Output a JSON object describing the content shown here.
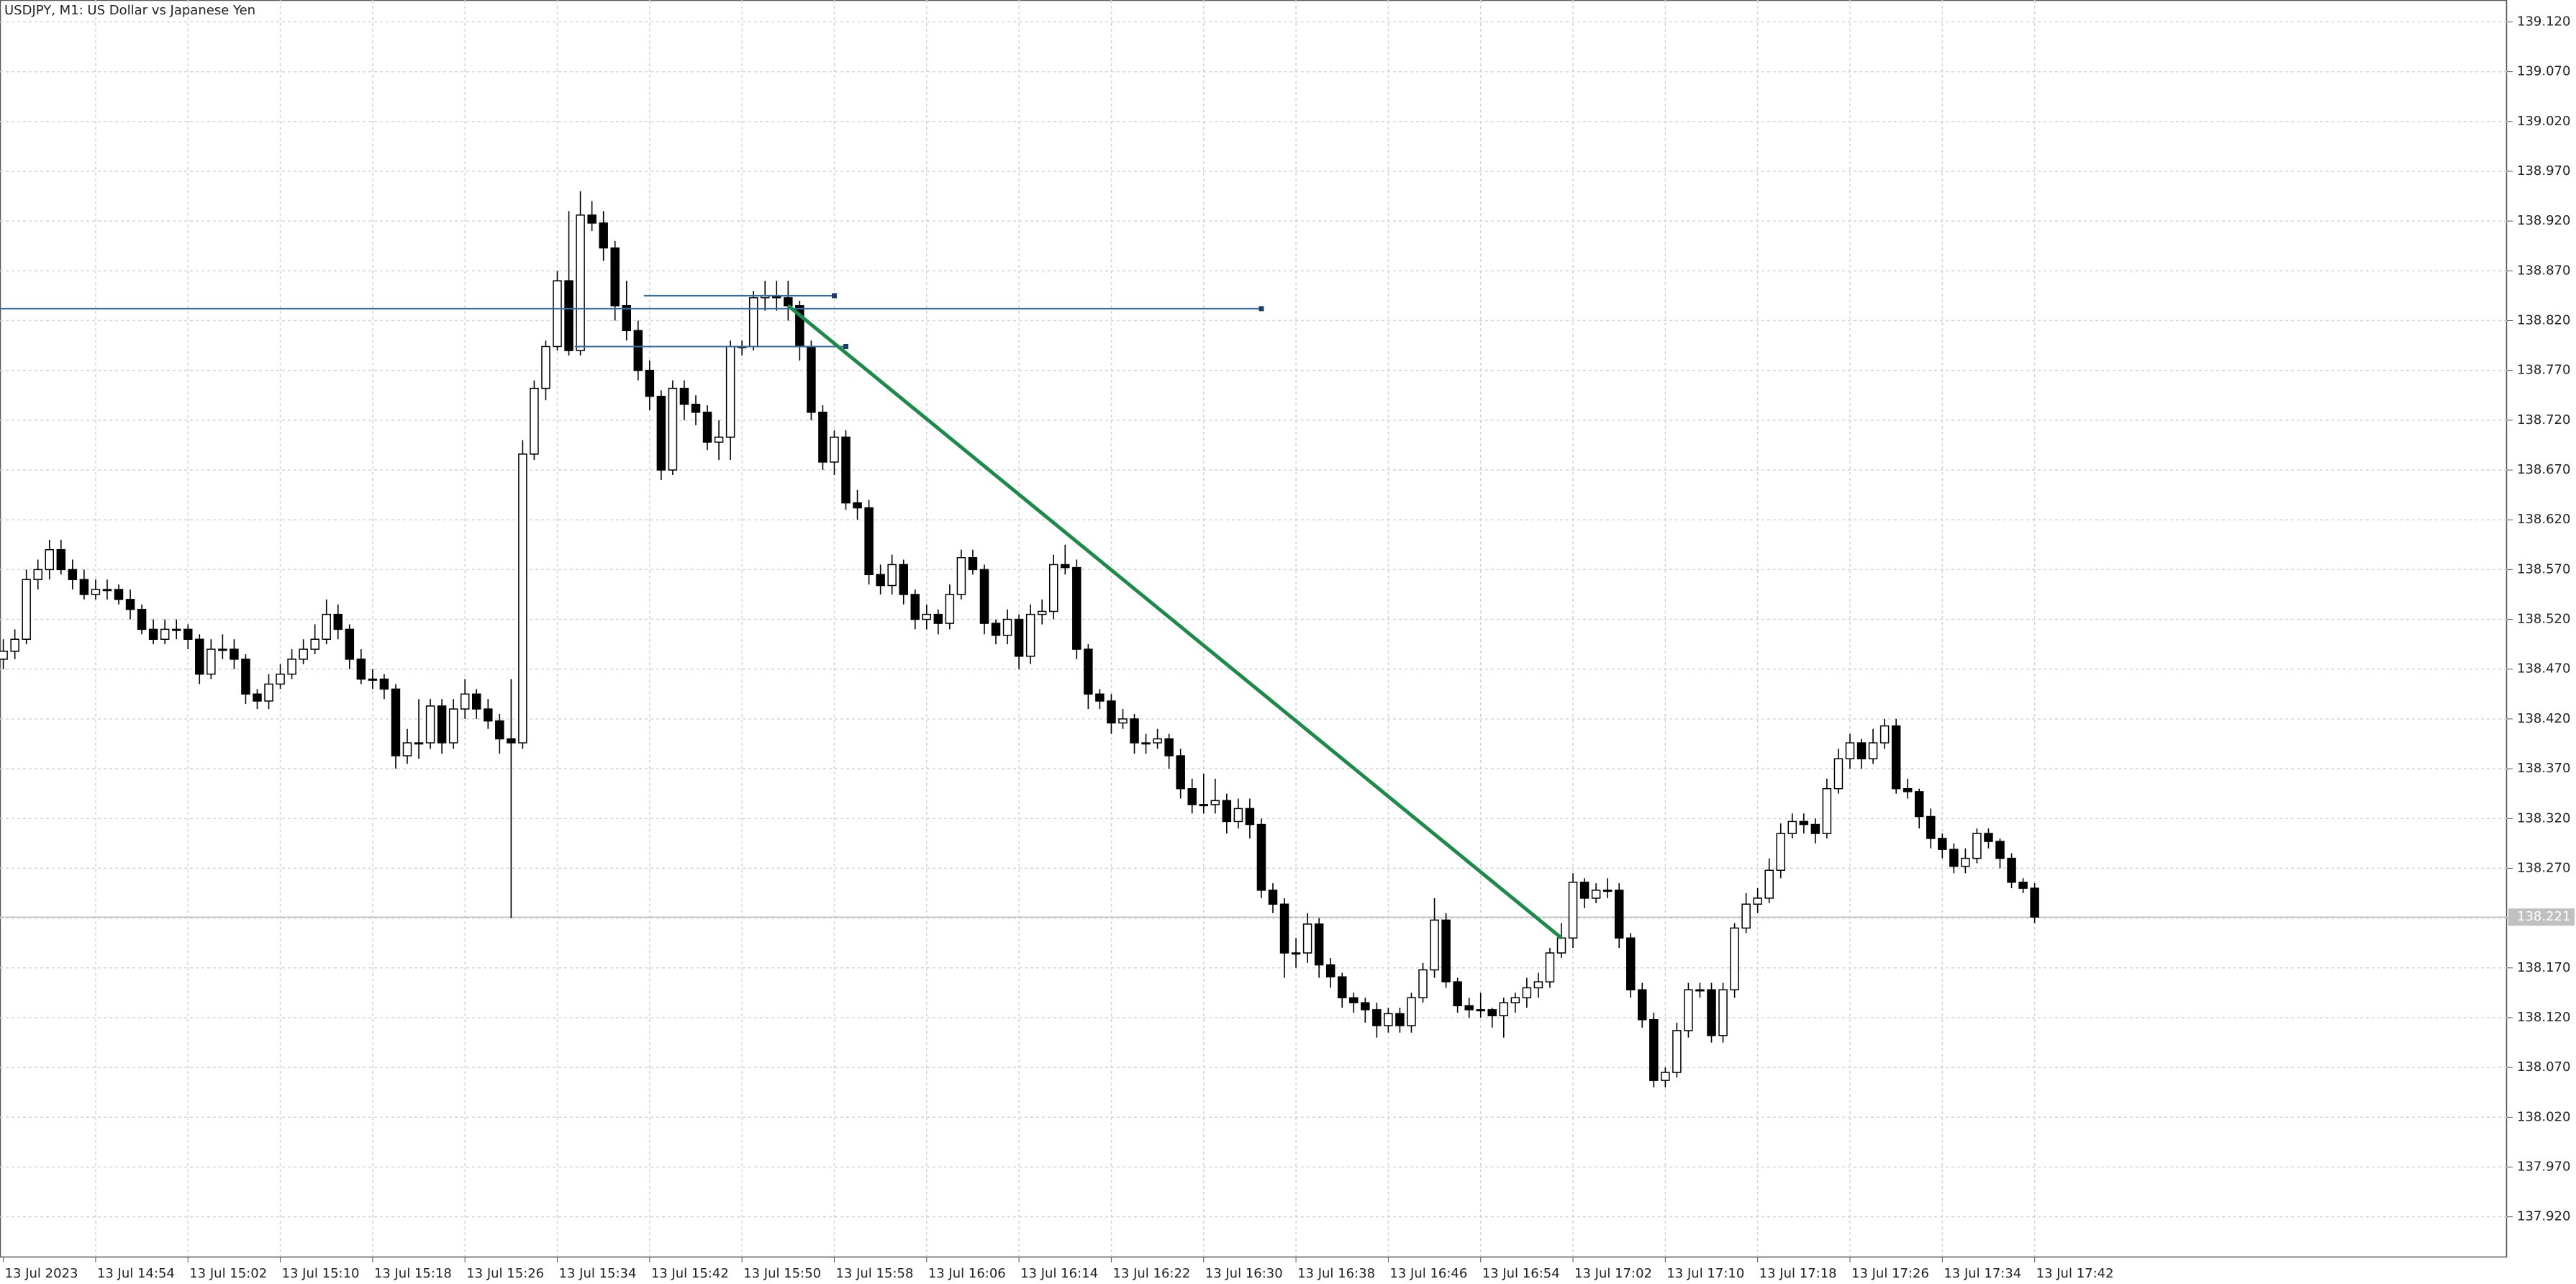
{
  "chart_data": {
    "type": "candlestick",
    "title": "USDJPY, M1:  US Dollar vs Japanese Yen",
    "ylim": [
      137.88,
      139.142
    ],
    "yticks": [
      {
        "value": 137.92,
        "label": "137.920"
      },
      {
        "value": 137.97,
        "label": "137.970"
      },
      {
        "value": 138.02,
        "label": "138.020"
      },
      {
        "value": 138.07,
        "label": "138.070"
      },
      {
        "value": 138.12,
        "label": "138.120"
      },
      {
        "value": 138.17,
        "label": "138.170"
      },
      {
        "value": 138.22,
        "label": "138.220"
      },
      {
        "value": 138.27,
        "label": "138.270"
      },
      {
        "value": 138.32,
        "label": "138.320"
      },
      {
        "value": 138.37,
        "label": "138.370"
      },
      {
        "value": 138.42,
        "label": "138.420"
      },
      {
        "value": 138.47,
        "label": "138.470"
      },
      {
        "value": 138.52,
        "label": "138.520"
      },
      {
        "value": 138.57,
        "label": "138.570"
      },
      {
        "value": 138.62,
        "label": "138.620"
      },
      {
        "value": 138.67,
        "label": "138.670"
      },
      {
        "value": 138.72,
        "label": "138.720"
      },
      {
        "value": 138.77,
        "label": "138.770"
      },
      {
        "value": 138.82,
        "label": "138.820"
      },
      {
        "value": 138.87,
        "label": "138.870"
      },
      {
        "value": 138.92,
        "label": "138.920"
      },
      {
        "value": 138.97,
        "label": "138.970"
      },
      {
        "value": 139.02,
        "label": "139.020"
      },
      {
        "value": 139.07,
        "label": "139.070"
      },
      {
        "value": 139.12,
        "label": "139.120"
      }
    ],
    "grid": true,
    "current_price": 138.221,
    "categories": [
      "13 Jul 2023",
      null,
      null,
      null,
      null,
      null,
      null,
      null,
      "13 Jul 14:54",
      null,
      null,
      null,
      null,
      null,
      null,
      null,
      "13 Jul 15:02",
      null,
      null,
      null,
      null,
      null,
      null,
      null,
      "13 Jul 15:10",
      null,
      null,
      null,
      null,
      null,
      null,
      null,
      "13 Jul 15:18",
      null,
      null,
      null,
      null,
      null,
      null,
      null,
      "13 Jul 15:26",
      null,
      null,
      null,
      null,
      null,
      null,
      null,
      "13 Jul 15:34",
      null,
      null,
      null,
      null,
      null,
      null,
      null,
      "13 Jul 15:42",
      null,
      null,
      null,
      null,
      null,
      null,
      null,
      "13 Jul 15:50",
      null,
      null,
      null,
      null,
      null,
      null,
      null,
      "13 Jul 15:58",
      null,
      null,
      null,
      null,
      null,
      null,
      null,
      "13 Jul 16:06",
      null,
      null,
      null,
      null,
      null,
      null,
      null,
      "13 Jul 16:14",
      null,
      null,
      null,
      null,
      null,
      null,
      null,
      "13 Jul 16:22",
      null,
      null,
      null,
      null,
      null,
      null,
      null,
      "13 Jul 16:30",
      null,
      null,
      null,
      null,
      null,
      null,
      null,
      "13 Jul 16:38",
      null,
      null,
      null,
      null,
      null,
      null,
      null,
      "13 Jul 16:46",
      null,
      null,
      null,
      null,
      null,
      null,
      null,
      "13 Jul 16:54",
      null,
      null,
      null,
      null,
      null,
      null,
      null,
      "13 Jul 17:02",
      null,
      null,
      null,
      null,
      null,
      null,
      null,
      "13 Jul 17:10",
      null,
      null,
      null,
      null,
      null,
      null,
      null,
      "13 Jul 17:18",
      null,
      null,
      null,
      null,
      null,
      null,
      null,
      "13 Jul 17:26",
      null,
      null,
      null,
      null,
      null,
      null,
      null,
      "13 Jul 17:34",
      null,
      null,
      null,
      null,
      null,
      null,
      null,
      "13 Jul 17:42"
    ],
    "open": [
      138.48,
      138.488,
      138.5,
      138.56,
      138.57,
      138.59,
      138.57,
      138.56,
      138.545,
      138.55,
      138.55,
      138.54,
      138.53,
      138.51,
      138.5,
      138.51,
      138.51,
      138.5,
      138.465,
      138.49,
      138.49,
      138.48,
      138.445,
      138.438,
      138.455,
      138.465,
      138.48,
      138.49,
      138.5,
      138.525,
      138.51,
      138.48,
      138.46,
      138.46,
      138.45,
      138.383,
      138.396,
      138.396,
      138.433,
      138.396,
      138.43,
      138.445,
      138.43,
      138.418,
      138.4,
      138.396,
      138.686,
      138.752,
      138.794,
      138.86,
      138.79,
      138.926,
      138.918,
      138.893,
      138.835,
      138.81,
      138.77,
      138.744,
      138.67,
      138.752,
      138.736,
      138.728,
      138.698,
      138.703,
      138.794,
      138.794,
      138.843,
      138.845,
      138.843,
      138.835,
      138.794,
      138.728,
      138.678,
      138.703,
      138.637,
      138.632,
      138.565,
      138.554,
      138.575,
      138.545,
      138.52,
      138.525,
      138.516,
      138.545,
      138.582,
      138.57,
      138.516,
      138.504,
      138.52,
      138.483,
      138.525,
      138.528,
      138.575,
      138.572,
      138.49,
      138.445,
      138.438,
      138.416,
      138.42,
      138.396,
      138.396,
      138.4,
      138.383,
      138.35,
      138.334,
      138.334,
      138.338,
      138.317,
      138.33,
      138.314,
      138.248,
      138.234,
      138.185,
      138.185,
      138.214,
      138.173,
      138.161,
      138.14,
      138.135,
      138.128,
      138.112,
      138.124,
      138.112,
      138.14,
      138.168,
      138.218,
      138.156,
      138.132,
      138.128,
      138.128,
      138.122,
      138.135,
      138.14,
      138.15,
      138.156,
      138.185,
      138.2,
      138.256,
      138.24,
      138.248,
      138.248,
      138.2,
      138.148,
      138.118,
      138.057,
      138.065,
      138.107,
      138.148,
      138.148,
      138.102,
      138.148,
      138.21,
      138.234,
      138.24,
      138.268,
      138.305,
      138.317,
      138.314,
      138.305,
      138.35,
      138.38,
      138.396,
      138.38,
      138.396,
      138.413,
      138.35,
      138.347,
      138.322,
      138.3,
      138.289,
      138.272,
      138.28,
      138.305,
      138.297,
      138.28,
      138.256,
      138.25
    ],
    "high": [
      138.5,
      138.51,
      138.57,
      138.58,
      138.6,
      138.6,
      138.58,
      138.57,
      138.56,
      138.56,
      138.555,
      138.55,
      138.535,
      138.52,
      138.52,
      138.52,
      138.515,
      138.505,
      138.5,
      138.505,
      138.5,
      138.485,
      138.45,
      138.465,
      138.475,
      138.49,
      138.5,
      138.515,
      138.54,
      138.535,
      138.515,
      138.49,
      138.47,
      138.465,
      138.455,
      138.41,
      138.44,
      138.44,
      138.44,
      138.44,
      138.46,
      138.45,
      138.44,
      138.425,
      138.46,
      138.7,
      138.76,
      138.8,
      138.87,
      138.93,
      138.95,
      138.94,
      138.93,
      138.9,
      138.86,
      138.82,
      138.78,
      138.75,
      138.76,
      138.76,
      138.745,
      138.735,
      138.72,
      138.8,
      138.8,
      138.85,
      138.86,
      138.86,
      138.86,
      138.84,
      138.8,
      138.735,
      138.71,
      138.71,
      138.65,
      138.64,
      138.575,
      138.585,
      138.58,
      138.55,
      138.535,
      138.53,
      138.555,
      138.59,
      138.59,
      138.575,
      138.52,
      138.53,
      138.525,
      138.535,
      138.54,
      138.585,
      138.595,
      138.58,
      138.495,
      138.45,
      138.445,
      138.43,
      138.425,
      138.405,
      138.41,
      138.405,
      138.39,
      138.36,
      138.365,
      138.36,
      138.345,
      138.34,
      138.34,
      138.32,
      138.255,
      138.24,
      138.2,
      138.225,
      138.22,
      138.18,
      138.165,
      138.145,
      138.14,
      138.135,
      138.13,
      138.13,
      138.145,
      138.175,
      138.24,
      138.225,
      138.16,
      138.14,
      138.145,
      138.13,
      138.14,
      138.145,
      138.16,
      138.165,
      138.19,
      138.215,
      138.265,
      138.26,
      138.255,
      138.26,
      138.255,
      138.205,
      138.155,
      138.125,
      138.07,
      138.115,
      138.155,
      138.155,
      138.155,
      138.155,
      138.215,
      138.245,
      138.25,
      138.28,
      138.315,
      138.325,
      138.325,
      138.32,
      138.36,
      138.39,
      138.405,
      138.4,
      138.41,
      138.42,
      138.42,
      138.36,
      138.35,
      138.33,
      138.305,
      138.295,
      138.29,
      138.31,
      138.31,
      138.3,
      138.285,
      138.26,
      138.255
    ],
    "low": [
      138.47,
      138.48,
      138.495,
      138.55,
      138.56,
      138.565,
      138.55,
      138.54,
      138.54,
      138.54,
      138.535,
      138.52,
      138.505,
      138.495,
      138.495,
      138.5,
      138.49,
      138.455,
      138.46,
      138.48,
      138.47,
      138.435,
      138.43,
      138.43,
      138.45,
      138.46,
      138.475,
      138.485,
      138.495,
      138.5,
      138.47,
      138.455,
      138.45,
      138.44,
      138.37,
      138.375,
      138.38,
      138.39,
      138.385,
      138.39,
      138.42,
      138.42,
      138.41,
      138.385,
      138.22,
      138.39,
      138.68,
      138.74,
      138.79,
      138.785,
      138.785,
      138.91,
      138.88,
      138.82,
      138.8,
      138.76,
      138.73,
      138.66,
      138.665,
      138.72,
      138.715,
      138.69,
      138.68,
      138.68,
      138.785,
      138.79,
      138.83,
      138.83,
      138.82,
      138.78,
      138.72,
      138.67,
      138.665,
      138.63,
      138.62,
      138.555,
      138.545,
      138.545,
      138.535,
      138.51,
      138.51,
      138.505,
      138.51,
      138.54,
      138.565,
      138.505,
      138.495,
      138.495,
      138.47,
      138.475,
      138.515,
      138.52,
      138.565,
      138.48,
      138.43,
      138.43,
      138.405,
      138.41,
      138.385,
      138.385,
      138.39,
      138.37,
      138.34,
      138.325,
      138.325,
      138.325,
      138.305,
      138.31,
      138.3,
      138.24,
      138.225,
      138.16,
      138.17,
      138.175,
      138.16,
      138.15,
      138.13,
      138.125,
      138.115,
      138.1,
      138.105,
      138.105,
      138.105,
      138.135,
      138.16,
      138.15,
      138.125,
      138.12,
      138.12,
      138.11,
      138.1,
      138.125,
      138.13,
      138.14,
      138.15,
      138.18,
      138.19,
      138.23,
      138.235,
      138.24,
      138.19,
      138.14,
      138.11,
      138.05,
      138.05,
      138.06,
      138.1,
      138.14,
      138.095,
      138.095,
      138.14,
      138.205,
      138.225,
      138.235,
      138.26,
      138.3,
      138.305,
      138.295,
      138.3,
      138.345,
      138.37,
      138.37,
      138.375,
      138.39,
      138.345,
      138.34,
      138.31,
      138.29,
      138.28,
      138.265,
      138.265,
      138.275,
      138.29,
      138.27,
      138.25,
      138.245,
      138.215
    ],
    "close": [
      138.488,
      138.5,
      138.56,
      138.57,
      138.59,
      138.57,
      138.56,
      138.545,
      138.55,
      138.55,
      138.54,
      138.53,
      138.51,
      138.5,
      138.51,
      138.51,
      138.5,
      138.465,
      138.49,
      138.49,
      138.48,
      138.445,
      138.438,
      138.455,
      138.465,
      138.48,
      138.49,
      138.5,
      138.525,
      138.51,
      138.48,
      138.46,
      138.46,
      138.45,
      138.383,
      138.396,
      138.396,
      138.433,
      138.396,
      138.43,
      138.445,
      138.43,
      138.418,
      138.4,
      138.396,
      138.686,
      138.752,
      138.794,
      138.86,
      138.79,
      138.926,
      138.918,
      138.893,
      138.835,
      138.81,
      138.77,
      138.744,
      138.67,
      138.752,
      138.736,
      138.728,
      138.698,
      138.703,
      138.794,
      138.794,
      138.843,
      138.845,
      138.843,
      138.835,
      138.794,
      138.728,
      138.678,
      138.703,
      138.637,
      138.632,
      138.565,
      138.554,
      138.575,
      138.545,
      138.52,
      138.525,
      138.516,
      138.545,
      138.582,
      138.57,
      138.516,
      138.504,
      138.52,
      138.483,
      138.525,
      138.528,
      138.575,
      138.572,
      138.49,
      138.445,
      138.438,
      138.416,
      138.42,
      138.396,
      138.396,
      138.4,
      138.383,
      138.35,
      138.334,
      138.334,
      138.338,
      138.317,
      138.33,
      138.314,
      138.248,
      138.234,
      138.185,
      138.185,
      138.214,
      138.173,
      138.161,
      138.14,
      138.135,
      138.128,
      138.112,
      138.124,
      138.112,
      138.14,
      138.168,
      138.218,
      138.156,
      138.132,
      138.128,
      138.128,
      138.122,
      138.135,
      138.14,
      138.15,
      138.156,
      138.185,
      138.2,
      138.256,
      138.24,
      138.248,
      138.248,
      138.2,
      138.148,
      138.118,
      138.057,
      138.065,
      138.107,
      138.148,
      138.148,
      138.102,
      138.148,
      138.21,
      138.234,
      138.24,
      138.268,
      138.305,
      138.317,
      138.314,
      138.305,
      138.35,
      138.38,
      138.396,
      138.38,
      138.396,
      138.413,
      138.35,
      138.347,
      138.322,
      138.3,
      138.289,
      138.272,
      138.28,
      138.305,
      138.297,
      138.28,
      138.256,
      138.25,
      138.221
    ],
    "lines": [
      {
        "from": [
          0,
          138.832
        ],
        "to": [
          109,
          138.832
        ],
        "color": "#2f6fa8"
      },
      {
        "from": [
          55.5,
          138.845
        ],
        "to": [
          72,
          138.845
        ],
        "color": "#2f6fa8"
      },
      {
        "from": [
          49.5,
          138.794
        ],
        "to": [
          73,
          138.794
        ],
        "color": "#2f6fa8"
      },
      {
        "from": [
          68,
          138.835
        ],
        "to": [
          135,
          138.2
        ],
        "color": "#1e8a4a"
      }
    ]
  }
}
